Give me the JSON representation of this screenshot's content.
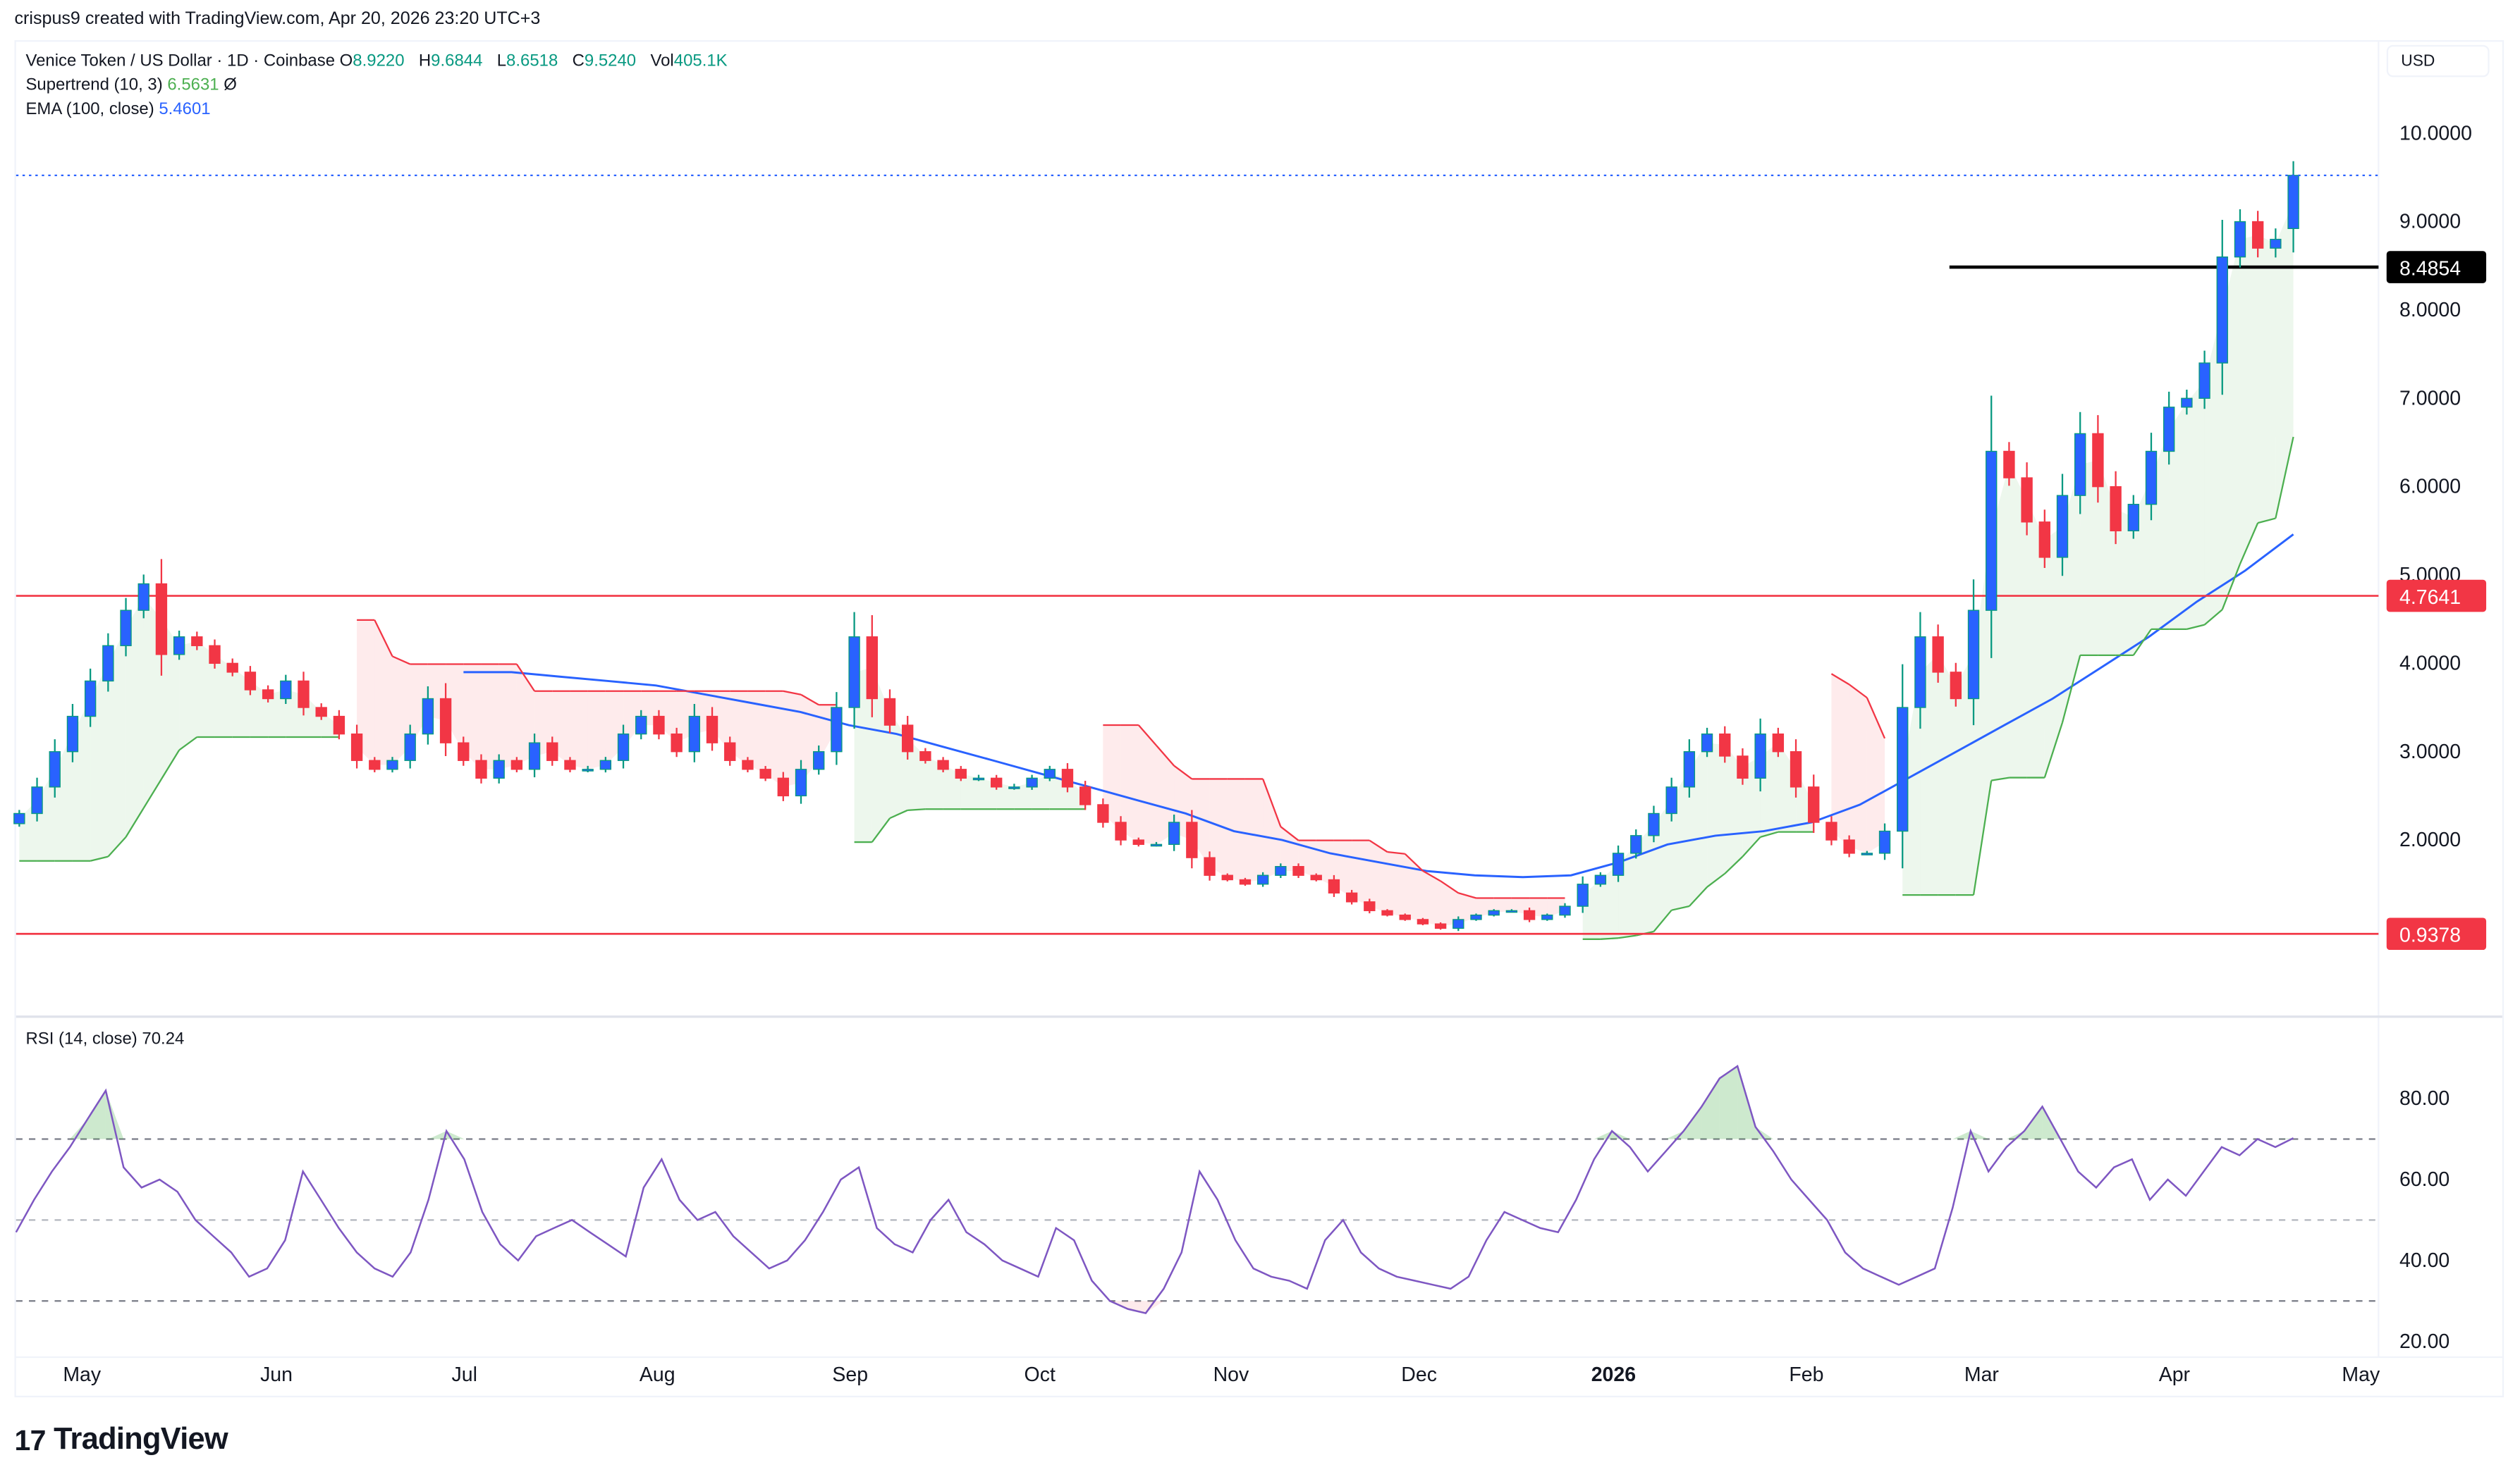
{
  "header": {
    "credit": "crispus9 created with TradingView.com, Apr 20, 2026 23:20 UTC+3"
  },
  "legend": {
    "symbol": "Venice Token / US Dollar · 1D · Coinbase",
    "ohlc": [
      {
        "key": "O",
        "value": "8.9220"
      },
      {
        "key": "H",
        "value": "9.6844"
      },
      {
        "key": "L",
        "value": "8.6518"
      },
      {
        "key": "C",
        "value": "9.5240"
      },
      {
        "key": "Vol",
        "value": "405.1K"
      }
    ],
    "supertrend_label": "Supertrend (10, 3)",
    "supertrend_value": "6.5631",
    "supertrend_icon": "Ø",
    "ema_label": "EMA (100, close)",
    "ema_value": "5.4601"
  },
  "price_axis": {
    "currency": "USD",
    "ticks": [
      "10.0000",
      "9.0000",
      "8.0000",
      "7.0000",
      "6.0000",
      "5.0000",
      "4.0000",
      "3.0000",
      "2.0000"
    ],
    "tick_values": [
      10,
      9,
      8,
      7,
      6,
      5,
      4,
      3,
      2
    ],
    "labels": [
      {
        "value": 8.4854,
        "text": "8.4854",
        "color": "#000000"
      },
      {
        "value": 4.7641,
        "text": "4.7641",
        "color": "#f23645"
      },
      {
        "value": 0.9378,
        "text": "0.9378",
        "color": "#f23645"
      }
    ]
  },
  "rsi": {
    "label": "RSI (14, close)",
    "value": "70.24",
    "ticks": [
      "80.00",
      "60.00",
      "40.00",
      "20.00"
    ],
    "tick_values": [
      80,
      60,
      40,
      20
    ],
    "bands": [
      70,
      50,
      30
    ]
  },
  "time_axis": {
    "labels": [
      {
        "text": "May",
        "x": 51,
        "bold": false
      },
      {
        "text": "Jun",
        "x": 172,
        "bold": false
      },
      {
        "text": "Jul",
        "x": 289,
        "bold": false
      },
      {
        "text": "Aug",
        "x": 409,
        "bold": false
      },
      {
        "text": "Sep",
        "x": 529,
        "bold": false
      },
      {
        "text": "Oct",
        "x": 647,
        "bold": false
      },
      {
        "text": "Nov",
        "x": 766,
        "bold": false
      },
      {
        "text": "Dec",
        "x": 883,
        "bold": false
      },
      {
        "text": "2026",
        "x": 1004,
        "bold": true
      },
      {
        "text": "Feb",
        "x": 1124,
        "bold": false
      },
      {
        "text": "Mar",
        "x": 1233,
        "bold": false
      },
      {
        "text": "Apr",
        "x": 1353,
        "bold": false
      },
      {
        "text": "May",
        "x": 1469,
        "bold": false
      }
    ]
  },
  "brand": {
    "name": "TradingView",
    "mark": "17"
  },
  "colors": {
    "up_body": "#2962ff",
    "up_wick": "#089981",
    "down": "#f23645",
    "ema": "#2962ff",
    "supertrend_up": "#4caf50",
    "supertrend_down": "#f23645",
    "rsi": "#7e57c2",
    "hline_resistance": "#000000",
    "hline_support": "#f23645"
  },
  "chart_data": {
    "type": "candlestick",
    "title": "Venice Token / US Dollar · 1D · Coinbase",
    "xlabel": "",
    "ylabel": "USD",
    "ylim": [
      0.3,
      10.8
    ],
    "x_range": [
      "2025-04-21",
      "2026-04-20"
    ],
    "grid": false,
    "step_days": 3,
    "closes": [
      2.3,
      2.6,
      3.0,
      3.4,
      3.8,
      4.2,
      4.6,
      4.9,
      4.1,
      4.3,
      4.2,
      4.0,
      3.9,
      3.7,
      3.6,
      3.8,
      3.5,
      3.4,
      3.2,
      2.9,
      2.8,
      2.9,
      3.2,
      3.6,
      3.1,
      2.9,
      2.7,
      2.9,
      2.8,
      3.1,
      2.9,
      2.8,
      2.8,
      2.9,
      3.2,
      3.4,
      3.2,
      3.0,
      3.4,
      3.1,
      2.9,
      2.8,
      2.7,
      2.5,
      2.8,
      3.0,
      3.5,
      4.3,
      3.6,
      3.3,
      3.0,
      2.9,
      2.8,
      2.7,
      2.7,
      2.6,
      2.6,
      2.7,
      2.8,
      2.6,
      2.4,
      2.2,
      2.0,
      1.95,
      1.95,
      2.2,
      1.8,
      1.6,
      1.55,
      1.5,
      1.6,
      1.7,
      1.6,
      1.55,
      1.4,
      1.3,
      1.2,
      1.15,
      1.1,
      1.05,
      1.0,
      1.1,
      1.15,
      1.2,
      1.2,
      1.1,
      1.15,
      1.25,
      1.5,
      1.6,
      1.85,
      2.05,
      2.3,
      2.6,
      3.0,
      3.2,
      2.95,
      2.7,
      3.2,
      3.0,
      2.6,
      2.2,
      2.0,
      1.85,
      1.85,
      2.1,
      3.5,
      4.3,
      3.9,
      3.6,
      4.6,
      6.4,
      6.1,
      5.6,
      5.2,
      5.9,
      6.6,
      6.0,
      5.5,
      5.8,
      6.4,
      6.9,
      7.0,
      7.4,
      8.6,
      9.0,
      8.7,
      8.8,
      9.524
    ],
    "ema_100": {
      "start_index": 25,
      "values": [
        3.9,
        3.9,
        3.85,
        3.8,
        3.75,
        3.65,
        3.55,
        3.45,
        3.3,
        3.2,
        3.05,
        2.9,
        2.75,
        2.6,
        2.45,
        2.3,
        2.1,
        2.0,
        1.85,
        1.75,
        1.65,
        1.6,
        1.58,
        1.6,
        1.75,
        1.95,
        2.05,
        2.1,
        2.2,
        2.4,
        2.7,
        3.0,
        3.3,
        3.6,
        3.95,
        4.3,
        4.7,
        5.05,
        5.4601
      ]
    },
    "supertrend_last": 6.5631,
    "hlines": [
      {
        "value": 8.4854,
        "color": "#000000",
        "label": "8.4854"
      },
      {
        "value": 4.7641,
        "color": "#f23645",
        "label": "4.7641"
      },
      {
        "value": 0.9378,
        "color": "#f23645",
        "label": "0.9378"
      }
    ],
    "last_price": 9.524,
    "rsi": {
      "period": 14,
      "last": 70.24,
      "ylim": [
        17,
        95
      ],
      "bands": [
        30,
        50,
        70
      ],
      "values": [
        47,
        55,
        62,
        68,
        75,
        82,
        63,
        58,
        60,
        57,
        50,
        46,
        42,
        36,
        38,
        45,
        62,
        55,
        48,
        42,
        38,
        36,
        42,
        55,
        72,
        65,
        52,
        44,
        40,
        46,
        48,
        50,
        47,
        44,
        41,
        58,
        65,
        55,
        50,
        52,
        46,
        42,
        38,
        40,
        45,
        52,
        60,
        63,
        48,
        44,
        42,
        50,
        55,
        47,
        44,
        40,
        38,
        36,
        48,
        45,
        35,
        30,
        28,
        27,
        33,
        42,
        62,
        55,
        45,
        38,
        36,
        35,
        33,
        45,
        50,
        42,
        38,
        36,
        35,
        34,
        33,
        36,
        45,
        52,
        50,
        48,
        47,
        55,
        65,
        72,
        68,
        62,
        67,
        72,
        78,
        85,
        88,
        73,
        67,
        60,
        55,
        50,
        42,
        38,
        36,
        34,
        36,
        38,
        53,
        72,
        62,
        68,
        72,
        78,
        70,
        62,
        58,
        63,
        65,
        55,
        60,
        56,
        62,
        68,
        66,
        70,
        68,
        70.24
      ]
    }
  }
}
